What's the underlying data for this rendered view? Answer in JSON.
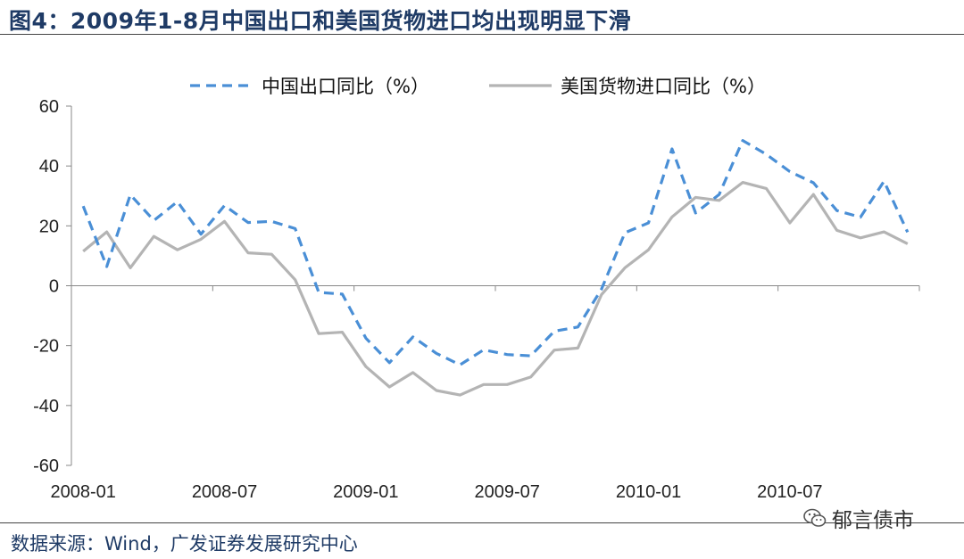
{
  "title": "图4：2009年1-8月中国出口和美国货物进口均出现明显下滑",
  "source": "数据来源：Wind，广发证券发展研究中心",
  "watermark": "郁言债市",
  "colors": {
    "title": "#1f3b66",
    "china": "#4a8fd6",
    "us": "#b4b4b4"
  },
  "chart_data": {
    "type": "line",
    "ylim": [
      -60,
      60
    ],
    "yticks": [
      60,
      40,
      20,
      0,
      -20,
      -40,
      -60
    ],
    "xtick_labels": [
      "2008-01",
      "2008-07",
      "2009-01",
      "2009-07",
      "2010-01",
      "2010-07"
    ],
    "legend_position": "top",
    "grid": false,
    "x": [
      "2008-01",
      "2008-02",
      "2008-03",
      "2008-04",
      "2008-05",
      "2008-06",
      "2008-07",
      "2008-08",
      "2008-09",
      "2008-10",
      "2008-11",
      "2008-12",
      "2009-01",
      "2009-02",
      "2009-03",
      "2009-04",
      "2009-05",
      "2009-06",
      "2009-07",
      "2009-08",
      "2009-09",
      "2009-10",
      "2009-11",
      "2009-12",
      "2010-01",
      "2010-02",
      "2010-03",
      "2010-04",
      "2010-05",
      "2010-06",
      "2010-07",
      "2010-08",
      "2010-09",
      "2010-10",
      "2010-11",
      "2010-12"
    ],
    "series": [
      {
        "name": "中国出口同比（%）",
        "style": "dashed",
        "values": [
          26.6,
          6.4,
          30.4,
          21.8,
          28.1,
          17.2,
          26.8,
          21.1,
          21.5,
          19.1,
          -2.2,
          -2.8,
          -17.5,
          -25.7,
          -17.1,
          -22.6,
          -26.4,
          -21.4,
          -23.0,
          -23.4,
          -15.2,
          -13.8,
          -1.2,
          17.7,
          21.0,
          45.7,
          24.3,
          30.5,
          48.5,
          43.9,
          38.1,
          34.4,
          25.1,
          22.9,
          34.9,
          17.9
        ]
      },
      {
        "name": "美国货物进口同比（%）",
        "style": "solid",
        "values": [
          11.5,
          18.0,
          6.0,
          16.5,
          12.0,
          15.5,
          21.5,
          11.0,
          10.5,
          2.0,
          -16.0,
          -15.5,
          -27.0,
          -33.8,
          -29.0,
          -35.0,
          -36.5,
          -33.0,
          -33.0,
          -30.5,
          -21.5,
          -20.8,
          -3.0,
          6.0,
          12.0,
          23.0,
          29.5,
          28.5,
          34.5,
          32.5,
          21.0,
          30.5,
          18.5,
          16.0,
          18.0,
          14.0
        ]
      }
    ]
  }
}
